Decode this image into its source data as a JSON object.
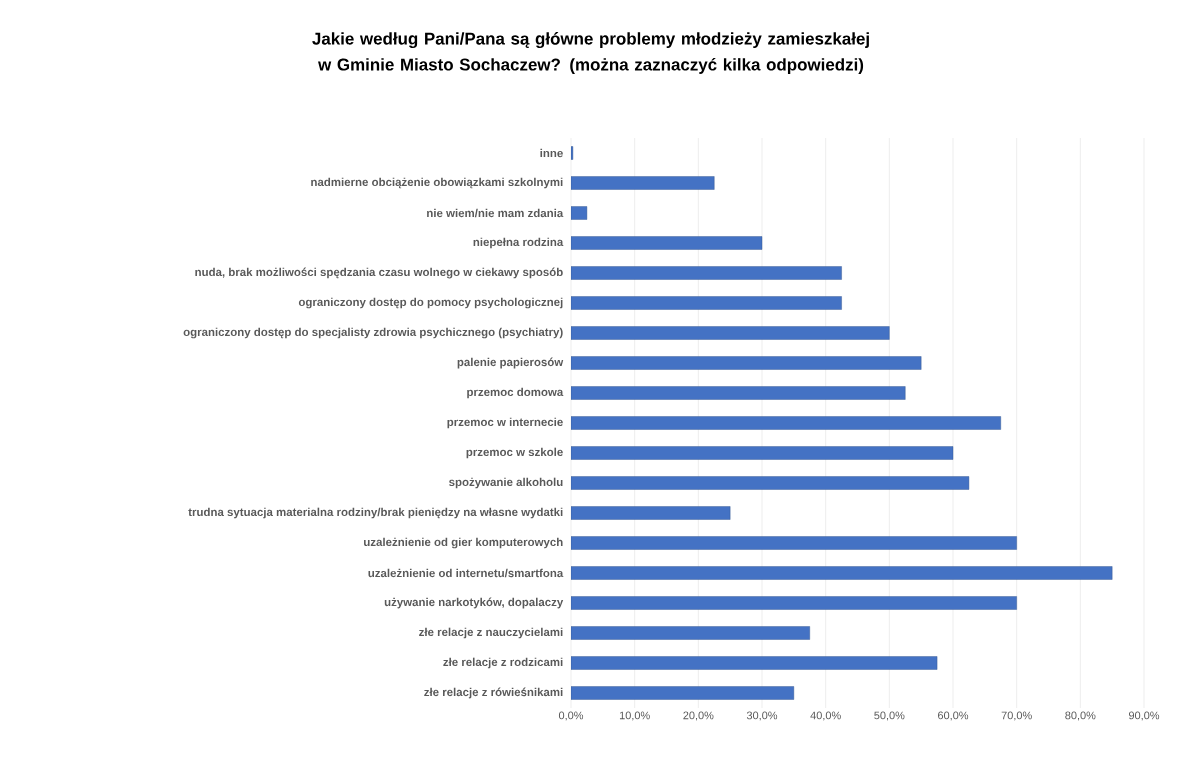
{
  "chart_data": {
    "type": "bar",
    "orientation": "horizontal",
    "title": "Jakie według Pani/Pana  są główne problemy młodzieży zamieszkałej w Gminie Miasto Sochaczew? (można zaznaczyć kilka odpowiedzi)",
    "categories": [
      "inne",
      "nadmierne obciążenie obowiązkami szkolnymi",
      "nie wiem/nie mam zdania",
      "niepełna rodzina",
      "nuda, brak możliwości spędzania czasu wolnego w ciekawy sposób",
      "ograniczony dostęp do pomocy psychologicznej",
      "ograniczony dostęp do specjalisty zdrowia psychicznego (psychiatry)",
      "palenie papierosów",
      "przemoc domowa",
      "przemoc w internecie",
      "przemoc w szkole",
      "spożywanie alkoholu",
      "trudna sytuacja materialna rodziny/brak pieniędzy na własne wydatki",
      "uzależnienie od gier komputerowych",
      "uzależnienie od internetu/smartfona",
      "używanie narkotyków, dopalaczy",
      "złe relacje z nauczycielami",
      "złe relacje z rodzicami",
      "złe relacje z rówieśnikami"
    ],
    "values": [
      0.3,
      22.5,
      2.5,
      30,
      42.5,
      42.5,
      50,
      55,
      52.5,
      67.5,
      60,
      62.5,
      25,
      70,
      85,
      70,
      37.5,
      57.5,
      35
    ],
    "color": "#4472c4",
    "xlim": [
      0,
      90
    ],
    "xticks": [
      {
        "value": 0,
        "label": "0,0%"
      },
      {
        "value": 10,
        "label": "10,0%"
      },
      {
        "value": 20,
        "label": "20,0%"
      },
      {
        "value": 30,
        "label": "30,0%"
      },
      {
        "value": 40,
        "label": "40,0%"
      },
      {
        "value": 50,
        "label": "50,0%"
      },
      {
        "value": 60,
        "label": "60,0%"
      },
      {
        "value": 70,
        "label": "70,0%"
      },
      {
        "value": 80,
        "label": "80,0%"
      },
      {
        "value": 90,
        "label": "90,0%"
      }
    ],
    "grid": "x"
  }
}
